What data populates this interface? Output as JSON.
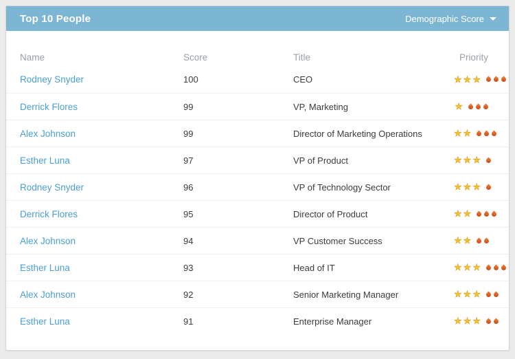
{
  "header": {
    "title": "Top 10 People",
    "dropdown_label": "Demographic Score",
    "dropdown_icon": "caret-down-icon"
  },
  "table": {
    "columns": [
      "Name",
      "Score",
      "Title",
      "Priority"
    ],
    "rows": [
      {
        "name": "Rodney Snyder",
        "score": "100",
        "title": "CEO",
        "stars": 3,
        "flames": 3
      },
      {
        "name": "Derrick Flores",
        "score": "99",
        "title": "VP, Marketing",
        "stars": 1,
        "flames": 3
      },
      {
        "name": "Alex Johnson",
        "score": "99",
        "title": "Director of Marketing Operations",
        "stars": 2,
        "flames": 3
      },
      {
        "name": "Esther Luna",
        "score": "97",
        "title": "VP of Product",
        "stars": 3,
        "flames": 1
      },
      {
        "name": "Rodney Snyder",
        "score": "96",
        "title": "VP of Technology Sector",
        "stars": 3,
        "flames": 1
      },
      {
        "name": "Derrick Flores",
        "score": "95",
        "title": "Director of Product",
        "stars": 2,
        "flames": 3
      },
      {
        "name": "Alex Johnson",
        "score": "94",
        "title": "VP Customer Success",
        "stars": 2,
        "flames": 2
      },
      {
        "name": "Esther Luna",
        "score": "93",
        "title": "Head of IT",
        "stars": 3,
        "flames": 3
      },
      {
        "name": "Alex Johnson",
        "score": "92",
        "title": "Senior Marketing Manager",
        "stars": 3,
        "flames": 2
      },
      {
        "name": "Esther Luna",
        "score": "91",
        "title": "Enterprise Manager",
        "stars": 3,
        "flames": 2
      }
    ]
  },
  "icons": {
    "star_glyph": "★",
    "star_icon": "star-icon",
    "flame_icon": "flame-icon"
  },
  "colors": {
    "page_bg": "#ebebeb",
    "header_bg": "#7db6d2",
    "link": "#4a9fd4",
    "star": "#f3c231",
    "flame": "#cc4f1d",
    "column_header_text": "#9aa0a6",
    "cell_text": "#3c3c3c"
  }
}
